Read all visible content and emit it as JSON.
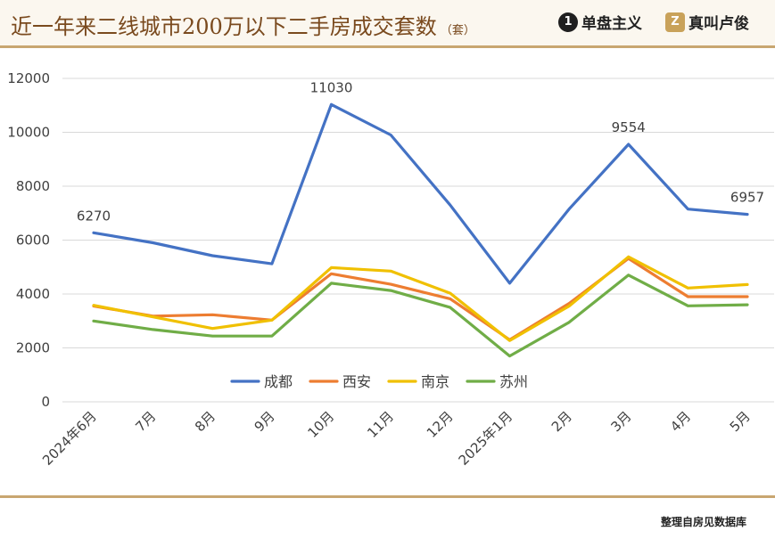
{
  "header": {
    "title": "近一年来二线城市200万以下二手房成交套数",
    "title_unit": "（套）",
    "brands": [
      {
        "logo": "1",
        "name": "单盘主义",
        "icon": "numeral-one-icon"
      },
      {
        "logo": "Z",
        "name": "真叫卢俊",
        "icon": "z-letter-icon"
      }
    ]
  },
  "footer": {
    "source": "整理自房见数据库"
  },
  "colors": {
    "accent": "#c8a670",
    "title": "#7a4a1e",
    "grid": "#d9d9d9",
    "axis_text": "#595959"
  },
  "chart_data": {
    "type": "line",
    "categories": [
      "2024年6月",
      "7月",
      "8月",
      "9月",
      "10月",
      "11月",
      "12月",
      "2025年1月",
      "2月",
      "3月",
      "4月",
      "5月"
    ],
    "ylim": [
      0,
      12000
    ],
    "yticks": [
      0,
      2000,
      4000,
      6000,
      8000,
      10000,
      12000
    ],
    "grid": true,
    "legend_position": "bottom-inside",
    "series": [
      {
        "name": "成都",
        "color": "#4472c4",
        "values": [
          6270,
          5900,
          5420,
          5120,
          11030,
          9900,
          7300,
          4400,
          7150,
          9554,
          7150,
          6957
        ]
      },
      {
        "name": "西安",
        "color": "#ed7d31",
        "values": [
          3550,
          3180,
          3230,
          3030,
          4750,
          4360,
          3820,
          2300,
          3650,
          5320,
          3900,
          3900
        ]
      },
      {
        "name": "南京",
        "color": "#f0c000",
        "values": [
          3580,
          3150,
          2720,
          3030,
          4980,
          4850,
          4030,
          2270,
          3550,
          5380,
          4220,
          4350
        ]
      },
      {
        "name": "苏州",
        "color": "#70ad47",
        "values": [
          3000,
          2680,
          2440,
          2440,
          4400,
          4130,
          3500,
          1700,
          2950,
          4700,
          3560,
          3600
        ]
      }
    ],
    "annotations": [
      {
        "series": 0,
        "index": 0,
        "text": "6270"
      },
      {
        "series": 0,
        "index": 4,
        "text": "11030"
      },
      {
        "series": 0,
        "index": 9,
        "text": "9554"
      },
      {
        "series": 0,
        "index": 11,
        "text": "6957"
      }
    ]
  }
}
